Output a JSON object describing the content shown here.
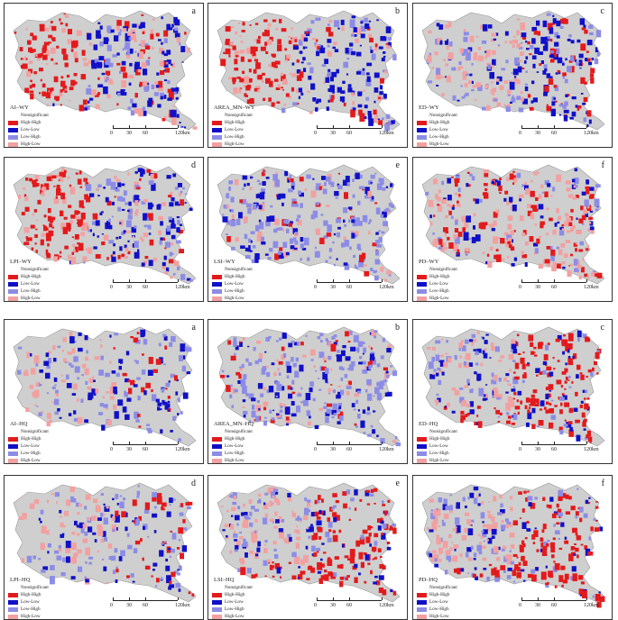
{
  "legend": {
    "title": "Nonsignificant",
    "items": [
      {
        "label": "High-High",
        "color": "#e31a1c"
      },
      {
        "label": "Low-Low",
        "color": "#1010c8"
      },
      {
        "label": "Low-High",
        "color": "#8c8ce6"
      },
      {
        "label": "High-Low",
        "color": "#f2a0a0"
      }
    ],
    "nonsignificant_color": "#cfcfcf"
  },
  "scalebar": {
    "labels": [
      "0",
      "30",
      "60",
      "120"
    ],
    "unit": "km"
  },
  "panels": [
    {
      "letter": "a",
      "label": "AI–WY",
      "dominant": "red-west"
    },
    {
      "letter": "b",
      "label": "AREA_MN–WY",
      "dominant": "red-west"
    },
    {
      "letter": "c",
      "label": "ED–WY",
      "dominant": "blue-east"
    },
    {
      "letter": "d",
      "label": "LPI–WY",
      "dominant": "red-west"
    },
    {
      "letter": "e",
      "label": "LSI–WY",
      "dominant": "lowhigh"
    },
    {
      "letter": "f",
      "label": "PD–WY",
      "dominant": "mixed"
    },
    {
      "letter": "a",
      "label": "AI–HQ",
      "dominant": "sparse"
    },
    {
      "letter": "b",
      "label": "AREA_MN–HQ",
      "dominant": "lowhigh"
    },
    {
      "letter": "c",
      "label": "ED–HQ",
      "dominant": "red-east"
    },
    {
      "letter": "d",
      "label": "LPI–HQ",
      "dominant": "sparse"
    },
    {
      "letter": "e",
      "label": "LSI–HQ",
      "dominant": "red-east"
    },
    {
      "letter": "f",
      "label": "PD–HQ",
      "dominant": "red-east"
    }
  ]
}
